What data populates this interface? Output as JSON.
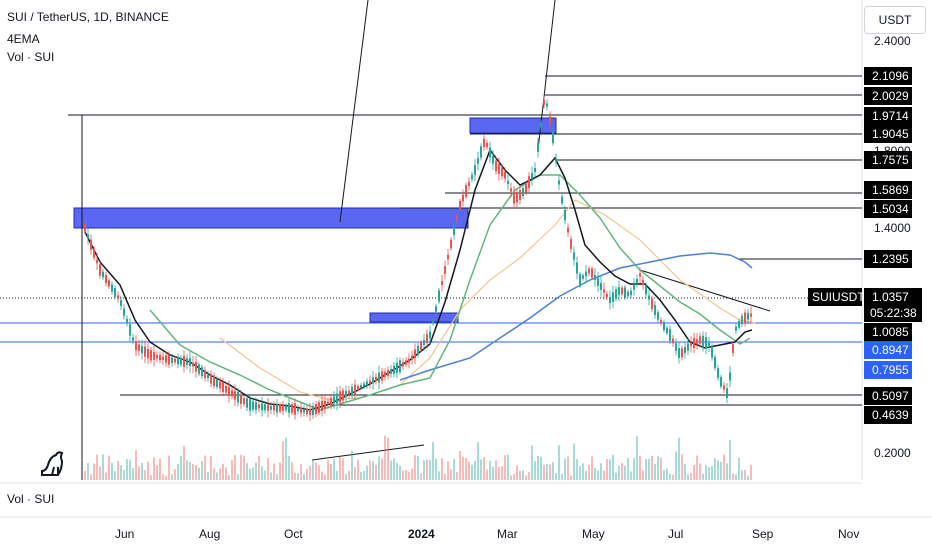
{
  "header": {
    "title": "SUI / TetherUS, 1D, BINANCE",
    "indicator": "4EMA",
    "volume": "Vol · SUI"
  },
  "pane_labels": {
    "volume": "Vol · SUI"
  },
  "currency_button": "USDT",
  "colors": {
    "candle_up": "#26a69a",
    "candle_down": "#ef5350",
    "candle_dark": "#131722",
    "ema_black": "#131722",
    "ema_green": "#5fb87a",
    "ema_orange": "#f5c58c",
    "ema_blue": "#4a7fe0",
    "zone_fill": "#3c4cf0",
    "hline_blue": "#2962ff",
    "label_bg": "#000000"
  },
  "chart_data": {
    "type": "candlestick",
    "symbol": "SUIUSDT",
    "timeframe": "1D",
    "exchange": "BINANCE",
    "xaxis": {
      "ticks": [
        "Jun",
        "Aug",
        "Oct",
        "2024",
        "Mar",
        "May",
        "Jul",
        "Sep",
        "Nov"
      ]
    },
    "yaxis": {
      "scale": "log",
      "ticks": [
        "2.4000",
        "1.8000",
        "1.4000",
        "0.2000"
      ],
      "price_labels": [
        "2.1096",
        "2.0029",
        "1.9714",
        "1.9045",
        "1.7575",
        "1.5869",
        "1.5034",
        "1.2395",
        "1.0085",
        "0.5097",
        "0.4639"
      ],
      "blue_labels": [
        "0.8947",
        "0.7955"
      ]
    },
    "last_price": {
      "symbol": "SUIUSDT",
      "price": "1.0357",
      "countdown": "05:22:38"
    },
    "overlays": [
      "candles",
      "4 EMA",
      "volume"
    ]
  }
}
